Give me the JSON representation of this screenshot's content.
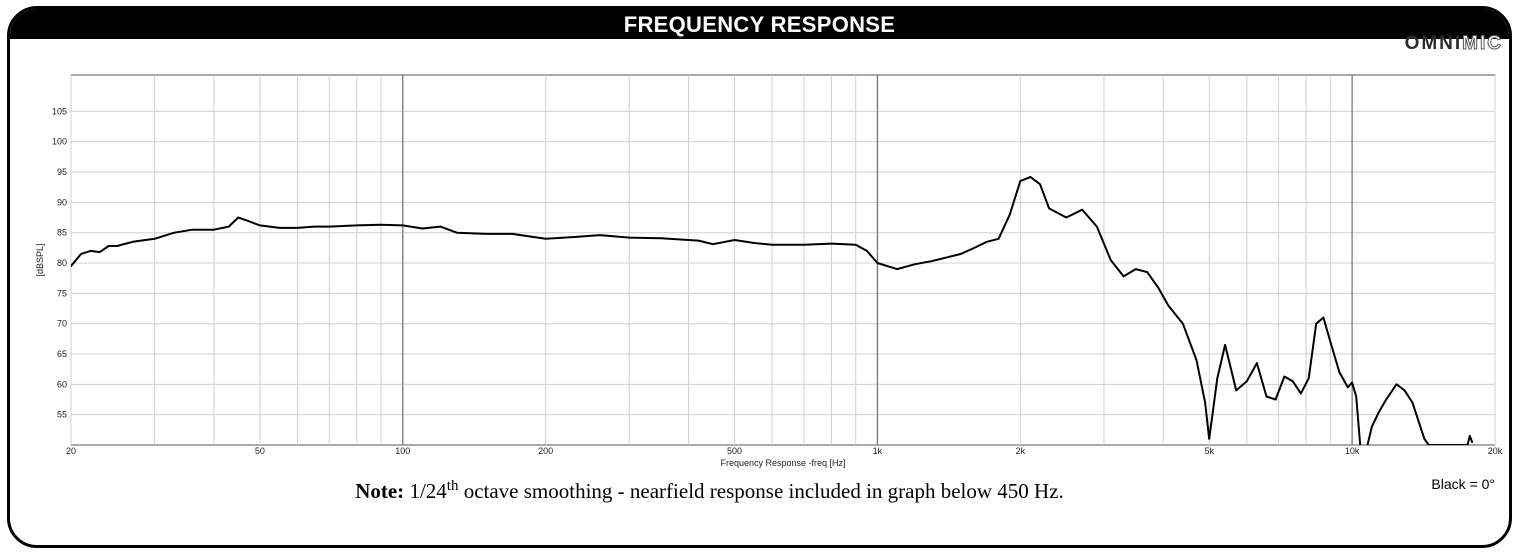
{
  "header": {
    "title": "FREQUENCY RESPONSE"
  },
  "logo": {
    "solid": "OMNI",
    "outline": "MIC"
  },
  "note": {
    "label": "Note:",
    "fraction": "1/24",
    "superscript": "th",
    "text": " octave smoothing - nearfield response included in graph below 450 Hz."
  },
  "angle_label": "Black = 0°",
  "chart_data": {
    "type": "line",
    "title": "FREQUENCY RESPONSE",
    "xlabel": "Frequency Response -freq [Hz]",
    "ylabel": "[dBSPL]",
    "x_scale": "log",
    "xlim": [
      20,
      20000
    ],
    "ylim": [
      50,
      111
    ],
    "grid": true,
    "x_tick_values": [
      20,
      50,
      100,
      200,
      500,
      1000,
      2000,
      5000,
      10000,
      20000
    ],
    "x_tick_labels": [
      "20",
      "50",
      "100",
      "200",
      "500",
      "1k",
      "2k",
      "5k",
      "10k",
      "20k"
    ],
    "y_tick_values": [
      55,
      60,
      65,
      70,
      75,
      80,
      85,
      90,
      95,
      100,
      105
    ],
    "y_tick_labels": [
      "55",
      "60",
      "65",
      "70",
      "75",
      "80",
      "85",
      "90",
      "95",
      "100",
      "105"
    ],
    "line_color": "#000000",
    "series": [
      {
        "x": [
          20,
          21,
          22,
          23,
          24,
          25,
          27,
          30,
          33,
          36,
          40,
          43,
          45,
          47,
          50,
          55,
          60,
          65,
          70,
          80,
          90,
          100,
          110,
          120,
          130,
          150,
          170,
          200,
          230,
          260,
          300,
          350,
          400,
          420,
          450,
          500,
          550,
          600,
          700,
          800,
          900,
          950,
          1000,
          1100,
          1200,
          1300,
          1500,
          1600,
          1700,
          1800,
          1900,
          2000,
          2100,
          2200,
          2300,
          2500,
          2700,
          2900,
          3100,
          3300,
          3500,
          3700,
          3900,
          4100,
          4400,
          4700,
          4900,
          5000,
          5200,
          5400,
          5700,
          6000,
          6300,
          6600,
          6900,
          7200,
          7500,
          7800,
          8100,
          8400,
          8700,
          9000,
          9400,
          9800,
          10000,
          10200,
          10400,
          10700,
          11000,
          11400,
          11800,
          12400,
          12900,
          13400,
          14200,
          14500,
          17500,
          17700,
          17900
        ],
        "y": [
          79.5,
          81.5,
          82,
          81.8,
          82.8,
          82.8,
          83.5,
          84,
          85,
          85.5,
          85.5,
          86,
          87.5,
          87,
          86.2,
          85.8,
          85.8,
          86,
          86,
          86.2,
          86.3,
          86.2,
          85.7,
          86,
          85,
          84.8,
          84.8,
          84,
          84.3,
          84.6,
          84.2,
          84.1,
          83.8,
          83.7,
          83.1,
          83.8,
          83.3,
          83,
          83,
          83.2,
          83,
          82,
          80,
          79,
          79.8,
          80.3,
          81.5,
          82.5,
          83.5,
          84,
          88,
          93.5,
          94.2,
          93,
          89,
          87.5,
          88.8,
          86,
          80.5,
          77.8,
          79,
          78.5,
          76,
          73,
          70,
          64,
          57,
          51,
          61,
          66.5,
          59,
          60.5,
          63.5,
          58,
          57.5,
          61.3,
          60.5,
          58.5,
          61,
          70,
          71,
          67,
          62,
          59.5,
          60.3,
          58,
          50,
          49,
          53,
          55.5,
          57.5,
          60,
          59,
          57,
          51,
          50,
          50,
          51.5,
          50.5
        ]
      }
    ]
  }
}
